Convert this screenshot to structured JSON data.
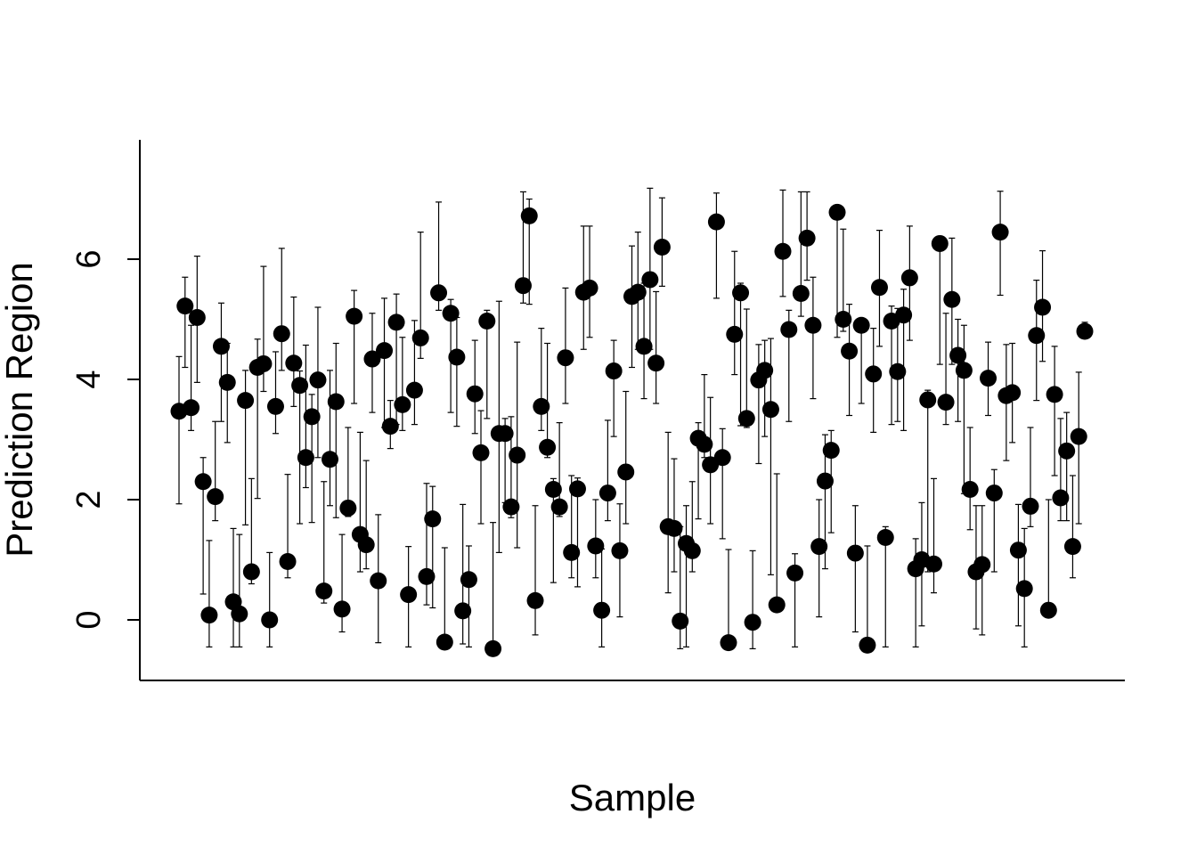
{
  "chart_data": {
    "type": "scatter",
    "title": "",
    "xlabel": "Sample",
    "ylabel": "Prediction Region",
    "y_ticks": [
      "0",
      "2",
      "4",
      "6"
    ],
    "xlim": [
      -1,
      152
    ],
    "ylim": [
      -1,
      8
    ],
    "error_bars": true,
    "point_color": "#000000",
    "points": [
      {
        "x": 1,
        "y": 3.47,
        "lo": 1.93,
        "hi": 4.38
      },
      {
        "x": 2,
        "y": 5.22,
        "lo": 4.2,
        "hi": 5.7
      },
      {
        "x": 3,
        "y": 3.53,
        "lo": 3.15,
        "hi": 4.9
      },
      {
        "x": 4,
        "y": 5.03,
        "lo": 3.95,
        "hi": 6.05
      },
      {
        "x": 5,
        "y": 2.3,
        "lo": 0.43,
        "hi": 2.7
      },
      {
        "x": 6,
        "y": 0.08,
        "lo": -0.45,
        "hi": 1.32
      },
      {
        "x": 7,
        "y": 2.05,
        "lo": 1.65,
        "hi": 3.3
      },
      {
        "x": 8,
        "y": 4.55,
        "lo": 3.3,
        "hi": 5.27
      },
      {
        "x": 9,
        "y": 3.95,
        "lo": 2.95,
        "hi": 4.6
      },
      {
        "x": 10,
        "y": 0.3,
        "lo": -0.45,
        "hi": 1.52
      },
      {
        "x": 11,
        "y": 0.1,
        "lo": -0.45,
        "hi": 1.42
      },
      {
        "x": 12,
        "y": 3.65,
        "lo": 1.58,
        "hi": 4.15
      },
      {
        "x": 13,
        "y": 0.8,
        "lo": 0.6,
        "hi": 2.35
      },
      {
        "x": 14,
        "y": 4.2,
        "lo": 2.02,
        "hi": 4.67
      },
      {
        "x": 15,
        "y": 4.26,
        "lo": 3.8,
        "hi": 5.88
      },
      {
        "x": 16,
        "y": 0.0,
        "lo": -0.45,
        "hi": 1.12
      },
      {
        "x": 17,
        "y": 3.55,
        "lo": 3.1,
        "hi": 4.46
      },
      {
        "x": 18,
        "y": 4.76,
        "lo": 4.15,
        "hi": 6.18
      },
      {
        "x": 19,
        "y": 0.97,
        "lo": 0.7,
        "hi": 2.42
      },
      {
        "x": 20,
        "y": 4.27,
        "lo": 3.55,
        "hi": 5.37
      },
      {
        "x": 21,
        "y": 3.9,
        "lo": 1.6,
        "hi": 4.14
      },
      {
        "x": 22,
        "y": 2.7,
        "lo": 2.2,
        "hi": 4.57
      },
      {
        "x": 23,
        "y": 3.38,
        "lo": 1.62,
        "hi": 3.75
      },
      {
        "x": 24,
        "y": 3.99,
        "lo": 2.7,
        "hi": 5.2
      },
      {
        "x": 25,
        "y": 0.48,
        "lo": 0.28,
        "hi": 2.3
      },
      {
        "x": 26,
        "y": 2.67,
        "lo": 1.9,
        "hi": 4.15
      },
      {
        "x": 27,
        "y": 3.63,
        "lo": 1.7,
        "hi": 4.6
      },
      {
        "x": 28,
        "y": 0.18,
        "lo": -0.2,
        "hi": 1.42
      },
      {
        "x": 29,
        "y": 1.86,
        "lo": 1.72,
        "hi": 3.2
      },
      {
        "x": 30,
        "y": 5.05,
        "lo": 3.6,
        "hi": 5.48
      },
      {
        "x": 31,
        "y": 1.42,
        "lo": 0.8,
        "hi": 3.12
      },
      {
        "x": 32,
        "y": 1.25,
        "lo": 0.85,
        "hi": 2.65
      },
      {
        "x": 33,
        "y": 4.34,
        "lo": 3.45,
        "hi": 5.1
      },
      {
        "x": 34,
        "y": 0.65,
        "lo": -0.38,
        "hi": 1.75
      },
      {
        "x": 35,
        "y": 4.48,
        "lo": 3.2,
        "hi": 5.35
      },
      {
        "x": 36,
        "y": 3.22,
        "lo": 2.85,
        "hi": 3.65
      },
      {
        "x": 37,
        "y": 4.95,
        "lo": 3.25,
        "hi": 5.42
      },
      {
        "x": 38,
        "y": 3.58,
        "lo": 3.15,
        "hi": 4.7
      },
      {
        "x": 39,
        "y": 0.42,
        "lo": -0.45,
        "hi": 1.22
      },
      {
        "x": 40,
        "y": 3.82,
        "lo": 3.25,
        "hi": 4.98
      },
      {
        "x": 41,
        "y": 4.69,
        "lo": 4.35,
        "hi": 6.45
      },
      {
        "x": 42,
        "y": 0.72,
        "lo": 0.25,
        "hi": 2.27
      },
      {
        "x": 43,
        "y": 1.68,
        "lo": 0.2,
        "hi": 2.22
      },
      {
        "x": 44,
        "y": 5.44,
        "lo": 5.15,
        "hi": 6.95
      },
      {
        "x": 45,
        "y": -0.37,
        "lo": -0.45,
        "hi": 1.2
      },
      {
        "x": 46,
        "y": 5.1,
        "lo": 3.45,
        "hi": 5.33
      },
      {
        "x": 47,
        "y": 4.37,
        "lo": 3.22,
        "hi": 5.03
      },
      {
        "x": 48,
        "y": 0.15,
        "lo": -0.4,
        "hi": 1.92
      },
      {
        "x": 49,
        "y": 0.67,
        "lo": -0.45,
        "hi": 1.23
      },
      {
        "x": 50,
        "y": 3.76,
        "lo": 3.1,
        "hi": 4.65
      },
      {
        "x": 51,
        "y": 2.78,
        "lo": 1.6,
        "hi": 3.48
      },
      {
        "x": 52,
        "y": 4.97,
        "lo": 3.35,
        "hi": 5.15
      },
      {
        "x": 53,
        "y": -0.48,
        "lo": -0.48,
        "hi": 1.62
      },
      {
        "x": 54,
        "y": 3.1,
        "lo": 1.12,
        "hi": 5.3
      },
      {
        "x": 55,
        "y": 3.1,
        "lo": 1.95,
        "hi": 3.35
      },
      {
        "x": 56,
        "y": 1.88,
        "lo": 1.7,
        "hi": 3.38
      },
      {
        "x": 57,
        "y": 2.74,
        "lo": 1.2,
        "hi": 4.62
      },
      {
        "x": 58,
        "y": 5.56,
        "lo": 5.27,
        "hi": 7.12
      },
      {
        "x": 59,
        "y": 6.72,
        "lo": 5.25,
        "hi": 7.0
      },
      {
        "x": 60,
        "y": 0.32,
        "lo": -0.25,
        "hi": 1.9
      },
      {
        "x": 61,
        "y": 3.55,
        "lo": 3.15,
        "hi": 4.85
      },
      {
        "x": 62,
        "y": 2.87,
        "lo": 2.7,
        "hi": 4.6
      },
      {
        "x": 63,
        "y": 2.17,
        "lo": 0.62,
        "hi": 2.35
      },
      {
        "x": 64,
        "y": 1.88,
        "lo": 1.72,
        "hi": 3.28
      },
      {
        "x": 65,
        "y": 4.36,
        "lo": 3.6,
        "hi": 5.52
      },
      {
        "x": 66,
        "y": 1.12,
        "lo": 0.7,
        "hi": 2.4
      },
      {
        "x": 67,
        "y": 2.18,
        "lo": 0.55,
        "hi": 2.36
      },
      {
        "x": 68,
        "y": 5.45,
        "lo": 4.5,
        "hi": 6.55
      },
      {
        "x": 69,
        "y": 5.52,
        "lo": 4.7,
        "hi": 6.55
      },
      {
        "x": 70,
        "y": 1.23,
        "lo": 0.7,
        "hi": 2.0
      },
      {
        "x": 71,
        "y": 0.16,
        "lo": -0.45,
        "hi": 1.18
      },
      {
        "x": 72,
        "y": 2.11,
        "lo": 1.65,
        "hi": 3.32
      },
      {
        "x": 73,
        "y": 4.14,
        "lo": 3.05,
        "hi": 4.65
      },
      {
        "x": 74,
        "y": 1.15,
        "lo": 0.05,
        "hi": 1.93
      },
      {
        "x": 75,
        "y": 2.46,
        "lo": 1.6,
        "hi": 3.8
      },
      {
        "x": 76,
        "y": 5.38,
        "lo": 4.2,
        "hi": 6.22
      },
      {
        "x": 77,
        "y": 5.45,
        "lo": 4.5,
        "hi": 6.45
      },
      {
        "x": 78,
        "y": 4.55,
        "lo": 3.68,
        "hi": 5.6
      },
      {
        "x": 79,
        "y": 5.66,
        "lo": 4.5,
        "hi": 7.18
      },
      {
        "x": 80,
        "y": 4.27,
        "lo": 3.6,
        "hi": 5.46
      },
      {
        "x": 81,
        "y": 6.2,
        "lo": 5.55,
        "hi": 7.02
      },
      {
        "x": 82,
        "y": 1.55,
        "lo": 0.45,
        "hi": 3.12
      },
      {
        "x": 83,
        "y": 1.52,
        "lo": 0.8,
        "hi": 2.68
      },
      {
        "x": 84,
        "y": -0.02,
        "lo": -0.48,
        "hi": 1.55
      },
      {
        "x": 85,
        "y": 1.27,
        "lo": -0.45,
        "hi": 1.9
      },
      {
        "x": 86,
        "y": 1.15,
        "lo": 0.8,
        "hi": 2.3
      },
      {
        "x": 87,
        "y": 3.02,
        "lo": 1.68,
        "hi": 3.28
      },
      {
        "x": 88,
        "y": 2.92,
        "lo": 2.7,
        "hi": 4.08
      },
      {
        "x": 89,
        "y": 2.58,
        "lo": 1.6,
        "hi": 3.7
      },
      {
        "x": 90,
        "y": 6.62,
        "lo": 5.35,
        "hi": 7.1
      },
      {
        "x": 91,
        "y": 2.7,
        "lo": 1.35,
        "hi": 3.18
      },
      {
        "x": 92,
        "y": -0.38,
        "lo": -0.48,
        "hi": 1.17
      },
      {
        "x": 93,
        "y": 4.75,
        "lo": 4.08,
        "hi": 6.13
      },
      {
        "x": 94,
        "y": 5.44,
        "lo": 3.23,
        "hi": 5.6
      },
      {
        "x": 95,
        "y": 3.35,
        "lo": 3.2,
        "hi": 5.17
      },
      {
        "x": 96,
        "y": -0.04,
        "lo": -0.48,
        "hi": 1.15
      },
      {
        "x": 97,
        "y": 3.99,
        "lo": 2.6,
        "hi": 4.58
      },
      {
        "x": 98,
        "y": 4.15,
        "lo": 3.05,
        "hi": 4.65
      },
      {
        "x": 99,
        "y": 3.5,
        "lo": 0.75,
        "hi": 4.68
      },
      {
        "x": 100,
        "y": 0.25,
        "lo": 0.2,
        "hi": 2.43
      },
      {
        "x": 101,
        "y": 6.13,
        "lo": 5.38,
        "hi": 7.15
      },
      {
        "x": 102,
        "y": 4.83,
        "lo": 3.3,
        "hi": 5.15
      },
      {
        "x": 103,
        "y": 0.78,
        "lo": -0.45,
        "hi": 1.1
      },
      {
        "x": 104,
        "y": 5.43,
        "lo": 5.05,
        "hi": 7.12
      },
      {
        "x": 105,
        "y": 6.35,
        "lo": 5.65,
        "hi": 7.12
      },
      {
        "x": 106,
        "y": 4.9,
        "lo": 3.68,
        "hi": 5.7
      },
      {
        "x": 107,
        "y": 1.22,
        "lo": 0.05,
        "hi": 2.0
      },
      {
        "x": 108,
        "y": 2.31,
        "lo": 0.85,
        "hi": 3.08
      },
      {
        "x": 109,
        "y": 2.82,
        "lo": 1.45,
        "hi": 3.15
      },
      {
        "x": 110,
        "y": 6.78,
        "lo": 4.7,
        "hi": 6.9
      },
      {
        "x": 111,
        "y": 5.0,
        "lo": 4.8,
        "hi": 6.5
      },
      {
        "x": 112,
        "y": 4.47,
        "lo": 3.4,
        "hi": 5.25
      },
      {
        "x": 113,
        "y": 1.11,
        "lo": -0.2,
        "hi": 1.9
      },
      {
        "x": 114,
        "y": 4.9,
        "lo": 3.6,
        "hi": 5.0
      },
      {
        "x": 115,
        "y": -0.42,
        "lo": -0.48,
        "hi": 1.23
      },
      {
        "x": 116,
        "y": 4.09,
        "lo": 3.12,
        "hi": 4.85
      },
      {
        "x": 117,
        "y": 5.53,
        "lo": 4.55,
        "hi": 6.48
      },
      {
        "x": 118,
        "y": 1.37,
        "lo": -0.45,
        "hi": 1.55
      },
      {
        "x": 119,
        "y": 4.97,
        "lo": 3.25,
        "hi": 5.22
      },
      {
        "x": 120,
        "y": 4.13,
        "lo": 3.3,
        "hi": 5.18
      },
      {
        "x": 121,
        "y": 5.07,
        "lo": 3.15,
        "hi": 5.5
      },
      {
        "x": 122,
        "y": 5.69,
        "lo": 4.65,
        "hi": 6.55
      },
      {
        "x": 123,
        "y": 0.85,
        "lo": -0.45,
        "hi": 1.35
      },
      {
        "x": 124,
        "y": 1.0,
        "lo": -0.1,
        "hi": 1.95
      },
      {
        "x": 125,
        "y": 3.66,
        "lo": 0.8,
        "hi": 3.82
      },
      {
        "x": 126,
        "y": 0.93,
        "lo": 0.45,
        "hi": 2.35
      },
      {
        "x": 127,
        "y": 6.26,
        "lo": 4.25,
        "hi": 6.35
      },
      {
        "x": 128,
        "y": 3.62,
        "lo": 3.25,
        "hi": 5.1
      },
      {
        "x": 129,
        "y": 5.33,
        "lo": 4.25,
        "hi": 6.35
      },
      {
        "x": 130,
        "y": 4.4,
        "lo": 3.3,
        "hi": 5.0
      },
      {
        "x": 131,
        "y": 4.15,
        "lo": 2.1,
        "hi": 4.9
      },
      {
        "x": 132,
        "y": 2.17,
        "lo": 1.5,
        "hi": 3.2
      },
      {
        "x": 133,
        "y": 0.8,
        "lo": -0.15,
        "hi": 1.9
      },
      {
        "x": 134,
        "y": 0.92,
        "lo": -0.25,
        "hi": 1.9
      },
      {
        "x": 135,
        "y": 4.02,
        "lo": 3.4,
        "hi": 4.62
      },
      {
        "x": 136,
        "y": 2.11,
        "lo": 0.8,
        "hi": 2.5
      },
      {
        "x": 137,
        "y": 6.45,
        "lo": 5.4,
        "hi": 7.13
      },
      {
        "x": 138,
        "y": 3.73,
        "lo": 2.65,
        "hi": 4.58
      },
      {
        "x": 139,
        "y": 3.78,
        "lo": 2.95,
        "hi": 4.6
      },
      {
        "x": 140,
        "y": 1.16,
        "lo": -0.1,
        "hi": 1.92
      },
      {
        "x": 141,
        "y": 0.52,
        "lo": -0.45,
        "hi": 1.52
      },
      {
        "x": 142,
        "y": 1.89,
        "lo": 1.55,
        "hi": 3.2
      },
      {
        "x": 143,
        "y": 4.73,
        "lo": 3.65,
        "hi": 5.65
      },
      {
        "x": 144,
        "y": 5.2,
        "lo": 4.3,
        "hi": 6.14
      },
      {
        "x": 145,
        "y": 0.16,
        "lo": 0.1,
        "hi": 2.0
      },
      {
        "x": 146,
        "y": 3.75,
        "lo": 2.4,
        "hi": 4.55
      },
      {
        "x": 147,
        "y": 2.03,
        "lo": 1.65,
        "hi": 3.35
      },
      {
        "x": 148,
        "y": 2.81,
        "lo": 1.65,
        "hi": 3.45
      },
      {
        "x": 149,
        "y": 1.22,
        "lo": 0.7,
        "hi": 2.4
      },
      {
        "x": 150,
        "y": 3.05,
        "lo": 1.6,
        "hi": 4.12
      },
      {
        "x": 151,
        "y": 4.8,
        "lo": 4.7,
        "hi": 4.95
      }
    ]
  }
}
